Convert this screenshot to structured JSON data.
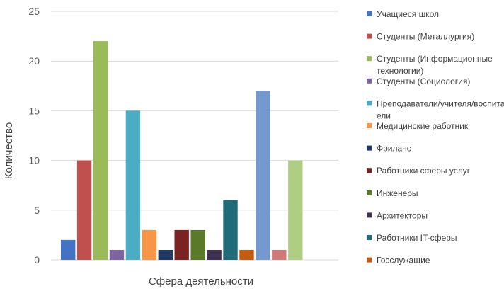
{
  "chart_data": {
    "type": "bar",
    "xlabel": "Сфера деятельности",
    "ylabel": "Количество",
    "ylim": [
      0,
      25
    ],
    "yticks": [
      0,
      5,
      10,
      15,
      20,
      25
    ],
    "grid": true,
    "legend_position": "right",
    "series": [
      {
        "name": "Учащиеся школ",
        "value": 2,
        "color": "#4472c4"
      },
      {
        "name": "Студенты (Металлургия)",
        "value": 10,
        "color": "#c0504d"
      },
      {
        "name": "Студенты (Информационные технологии)",
        "value": 22,
        "color": "#9bbb59"
      },
      {
        "name": "Студенты (Социология)",
        "value": 1,
        "color": "#8064a2"
      },
      {
        "name": "Преподаватели/учителя/воспитатели",
        "value": 15,
        "color": "#4bacc6"
      },
      {
        "name": "Медицинские работник",
        "value": 3,
        "color": "#f79646"
      },
      {
        "name": "Фриланс",
        "value": 1,
        "color": "#1f3864"
      },
      {
        "name": "Работники сферы услуг",
        "value": 3,
        "color": "#7b2323"
      },
      {
        "name": "Инженеры",
        "value": 3,
        "color": "#5a7a2a"
      },
      {
        "name": "Архитекторы",
        "value": 1,
        "color": "#3f3151"
      },
      {
        "name": "Работники IT-сферы",
        "value": 6,
        "color": "#1f6b7a"
      },
      {
        "name": "Госслужащие",
        "value": 1,
        "color": "#c55a11"
      },
      {
        "name": "",
        "value": 17,
        "color": "#7399cf"
      },
      {
        "name": "",
        "value": 1,
        "color": "#d07a78"
      },
      {
        "name": "",
        "value": 10,
        "color": "#b0cd84"
      }
    ]
  }
}
